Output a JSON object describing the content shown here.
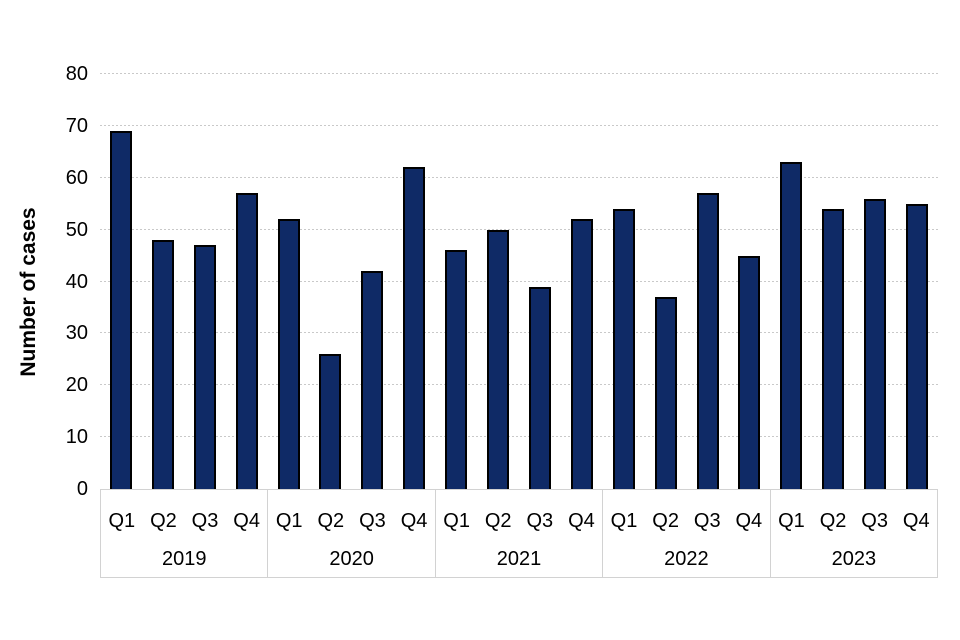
{
  "chart_data": {
    "type": "bar",
    "ylabel": "Number of cases",
    "ylim": [
      0,
      80
    ],
    "yticks": [
      0,
      10,
      20,
      30,
      40,
      50,
      60,
      70,
      80
    ],
    "grid": "horizontal-dashed",
    "legend": "none",
    "bar_color": "#0f2a66",
    "bar_border_color": "#000000",
    "gridline_color": "#c9c9c9",
    "frame_color": "#d2d2d2",
    "groups": [
      {
        "year": "2019",
        "quarters": [
          "Q1",
          "Q2",
          "Q3",
          "Q4"
        ],
        "values": [
          69,
          48,
          47,
          57
        ]
      },
      {
        "year": "2020",
        "quarters": [
          "Q1",
          "Q2",
          "Q3",
          "Q4"
        ],
        "values": [
          52,
          26,
          42,
          62
        ]
      },
      {
        "year": "2021",
        "quarters": [
          "Q1",
          "Q2",
          "Q3",
          "Q4"
        ],
        "values": [
          46,
          50,
          39,
          52
        ]
      },
      {
        "year": "2022",
        "quarters": [
          "Q1",
          "Q2",
          "Q3",
          "Q4"
        ],
        "values": [
          54,
          37,
          57,
          45
        ]
      },
      {
        "year": "2023",
        "quarters": [
          "Q1",
          "Q2",
          "Q3",
          "Q4"
        ],
        "values": [
          63,
          54,
          56,
          55
        ]
      }
    ]
  }
}
